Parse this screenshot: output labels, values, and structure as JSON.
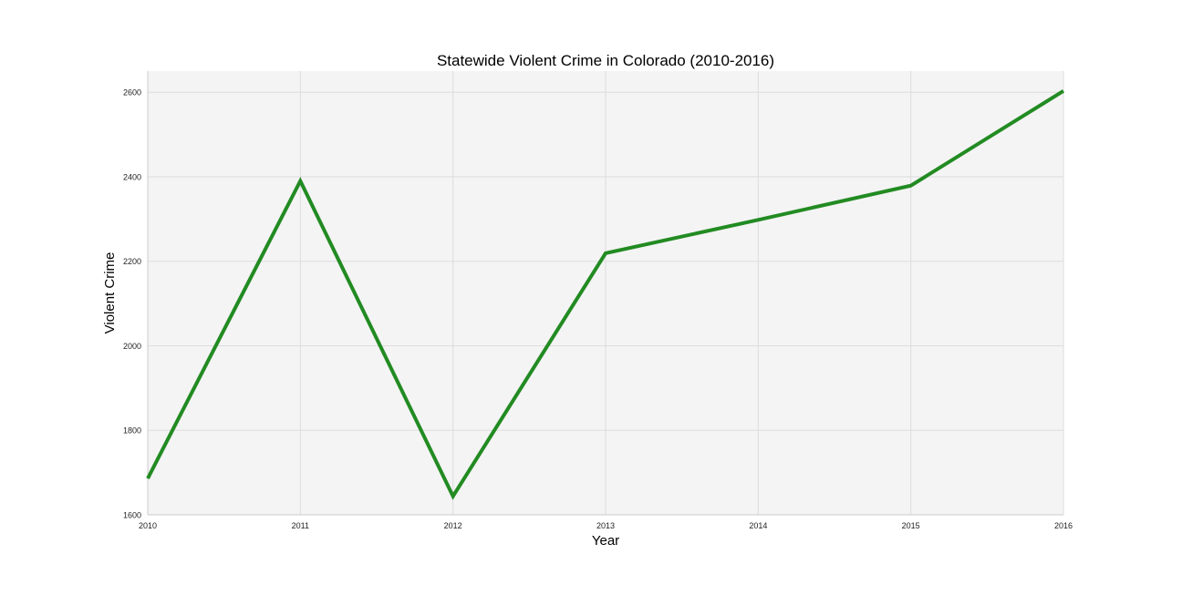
{
  "chart_data": {
    "type": "line",
    "title": "Statewide Violent Crime in Colorado (2010-2016)",
    "xlabel": "Year",
    "ylabel": "Violent Crime",
    "x": [
      2010,
      2011,
      2012,
      2013,
      2014,
      2015,
      2016
    ],
    "x_tick_labels": [
      "2010",
      "2011",
      "2012",
      "2013",
      "2014",
      "2015",
      "2016"
    ],
    "y_ticks": [
      1600,
      1800,
      2000,
      2200,
      2400,
      2600
    ],
    "y_tick_labels": [
      "1600",
      "1800",
      "2000",
      "2200",
      "2400",
      "2600"
    ],
    "xlim": [
      2010,
      2016
    ],
    "ylim": [
      1600,
      2650
    ],
    "grid": true,
    "series": [
      {
        "name": "Violent Crime",
        "color": "#228b22",
        "values": [
          1686,
          2390,
          1644,
          2219,
          2298,
          2379,
          2603
        ]
      }
    ],
    "colors": {
      "plot_background": "#f4f4f4",
      "grid": "#dddddd",
      "axis": "#cccccc"
    }
  }
}
